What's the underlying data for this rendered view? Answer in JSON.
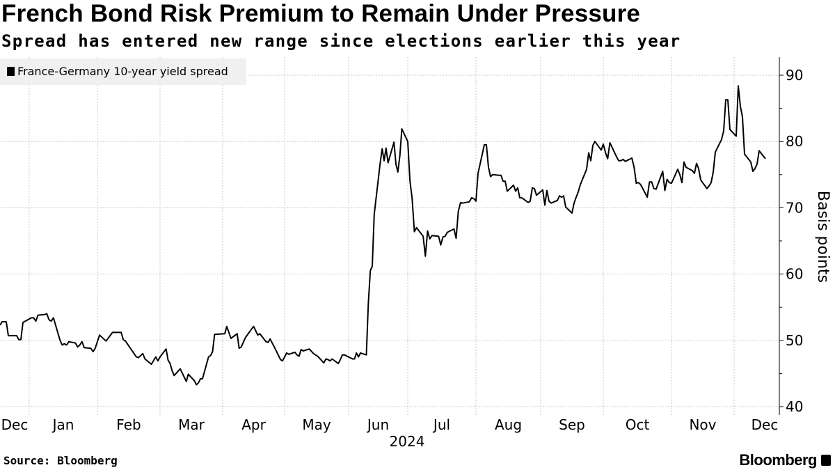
{
  "header": {
    "title": "French Bond Risk Premium to Remain Under Pressure",
    "subtitle": "Spread has entered new range since elections earlier this year"
  },
  "footer": {
    "source": "Source: Bloomberg",
    "logo": "Bloomberg"
  },
  "chart_data": {
    "type": "line",
    "title": "French Bond Risk Premium to Remain Under Pressure",
    "subtitle": "Spread has entered new range since elections earlier this year",
    "ylabel": "Basis points",
    "xlabel": "",
    "year_label": "2024",
    "ylim": [
      39,
      93
    ],
    "y_ticks": [
      40,
      50,
      60,
      70,
      80,
      90
    ],
    "y_axis_side": "right",
    "x_tick_labels": [
      "Dec",
      "Jan",
      "Feb",
      "Mar",
      "Apr",
      "May",
      "Jun",
      "Jul",
      "Aug",
      "Sep",
      "Oct",
      "Nov",
      "Dec"
    ],
    "grid": true,
    "legend_placement": "top-left",
    "line_color": "#000000",
    "legend_bg": "#f0f0f0",
    "series": [
      {
        "name": "France-Germany 10-year yield spread",
        "points": [
          [
            "2023-12-18",
            52.3
          ],
          [
            "2023-12-19",
            52.8
          ],
          [
            "2023-12-21",
            52.8
          ],
          [
            "2023-12-22",
            50.7
          ],
          [
            "2023-12-26",
            50.7
          ],
          [
            "2023-12-27",
            50.1
          ],
          [
            "2023-12-28",
            50.1
          ],
          [
            "2023-12-29",
            52.7
          ],
          [
            "2024-01-02",
            53.4
          ],
          [
            "2024-01-03",
            53.4
          ],
          [
            "2024-01-04",
            52.9
          ],
          [
            "2024-01-05",
            53.8
          ],
          [
            "2024-01-08",
            53.9
          ],
          [
            "2024-01-09",
            54.0
          ],
          [
            "2024-01-10",
            53.1
          ],
          [
            "2024-01-11",
            52.9
          ],
          [
            "2024-01-12",
            53.4
          ],
          [
            "2024-01-15",
            50.0
          ],
          [
            "2024-01-16",
            49.3
          ],
          [
            "2024-01-17",
            49.5
          ],
          [
            "2024-01-18",
            49.3
          ],
          [
            "2024-01-19",
            49.8
          ],
          [
            "2024-01-22",
            49.6
          ],
          [
            "2024-01-23",
            49.0
          ],
          [
            "2024-01-24",
            49.3
          ],
          [
            "2024-01-25",
            49.8
          ],
          [
            "2024-01-26",
            48.9
          ],
          [
            "2024-01-29",
            48.8
          ],
          [
            "2024-01-30",
            48.3
          ],
          [
            "2024-01-31",
            48.8
          ],
          [
            "2024-02-02",
            50.8
          ],
          [
            "2024-02-05",
            49.9
          ],
          [
            "2024-02-08",
            51.2
          ],
          [
            "2024-02-12",
            51.2
          ],
          [
            "2024-02-13",
            50.1
          ],
          [
            "2024-02-14",
            49.9
          ],
          [
            "2024-02-19",
            47.5
          ],
          [
            "2024-02-20",
            47.4
          ],
          [
            "2024-02-22",
            48.0
          ],
          [
            "2024-02-23",
            47.2
          ],
          [
            "2024-02-26",
            46.4
          ],
          [
            "2024-02-28",
            47.5
          ],
          [
            "2024-02-29",
            46.9
          ],
          [
            "2024-03-01",
            47.5
          ],
          [
            "2024-03-04",
            48.7
          ],
          [
            "2024-03-05",
            47.0
          ],
          [
            "2024-03-06",
            46.5
          ],
          [
            "2024-03-07",
            45.4
          ],
          [
            "2024-03-08",
            44.7
          ],
          [
            "2024-03-11",
            45.7
          ],
          [
            "2024-03-14",
            43.8
          ],
          [
            "2024-03-15",
            44.9
          ],
          [
            "2024-03-18",
            43.9
          ],
          [
            "2024-03-19",
            43.3
          ],
          [
            "2024-03-20",
            43.6
          ],
          [
            "2024-03-21",
            44.2
          ],
          [
            "2024-03-22",
            44.2
          ],
          [
            "2024-03-25",
            47.5
          ],
          [
            "2024-03-26",
            47.7
          ],
          [
            "2024-03-27",
            48.3
          ],
          [
            "2024-03-28",
            50.9
          ],
          [
            "2024-04-02",
            51.0
          ],
          [
            "2024-04-03",
            52.1
          ],
          [
            "2024-04-05",
            50.3
          ],
          [
            "2024-04-08",
            51.0
          ],
          [
            "2024-04-09",
            48.8
          ],
          [
            "2024-04-10",
            49.0
          ],
          [
            "2024-04-12",
            50.4
          ],
          [
            "2024-04-15",
            51.7
          ],
          [
            "2024-04-16",
            52.1
          ],
          [
            "2024-04-18",
            50.8
          ],
          [
            "2024-04-19",
            51.0
          ],
          [
            "2024-04-22",
            49.8
          ],
          [
            "2024-04-23",
            49.7
          ],
          [
            "2024-04-24",
            50.2
          ],
          [
            "2024-04-25",
            49.6
          ],
          [
            "2024-04-26",
            49.0
          ],
          [
            "2024-04-29",
            47.1
          ],
          [
            "2024-04-30",
            46.9
          ],
          [
            "2024-05-02",
            48.1
          ],
          [
            "2024-05-03",
            47.9
          ],
          [
            "2024-05-06",
            48.2
          ],
          [
            "2024-05-07",
            47.8
          ],
          [
            "2024-05-08",
            47.6
          ],
          [
            "2024-05-09",
            48.6
          ],
          [
            "2024-05-10",
            48.4
          ],
          [
            "2024-05-13",
            48.7
          ],
          [
            "2024-05-15",
            48.0
          ],
          [
            "2024-05-17",
            47.6
          ],
          [
            "2024-05-20",
            46.6
          ],
          [
            "2024-05-21",
            47.2
          ],
          [
            "2024-05-22",
            47.1
          ],
          [
            "2024-05-23",
            46.9
          ],
          [
            "2024-05-24",
            47.2
          ],
          [
            "2024-05-27",
            46.5
          ],
          [
            "2024-05-28",
            47.1
          ],
          [
            "2024-05-29",
            47.8
          ],
          [
            "2024-05-30",
            47.8
          ],
          [
            "2024-06-03",
            47.2
          ],
          [
            "2024-06-04",
            47.2
          ],
          [
            "2024-06-05",
            48.1
          ],
          [
            "2024-06-06",
            47.5
          ],
          [
            "2024-06-07",
            48.1
          ],
          [
            "2024-06-10",
            47.8
          ],
          [
            "2024-06-11",
            55.5
          ],
          [
            "2024-06-12",
            60.5
          ],
          [
            "2024-06-13",
            61.2
          ],
          [
            "2024-06-14",
            69.0
          ],
          [
            "2024-06-17",
            76.7
          ],
          [
            "2024-06-18",
            78.9
          ],
          [
            "2024-06-19",
            77.1
          ],
          [
            "2024-06-20",
            79.0
          ],
          [
            "2024-06-21",
            76.8
          ],
          [
            "2024-06-24",
            79.9
          ],
          [
            "2024-06-25",
            76.6
          ],
          [
            "2024-06-26",
            75.4
          ],
          [
            "2024-06-27",
            77.9
          ],
          [
            "2024-06-28",
            81.9
          ],
          [
            "2024-07-01",
            80.0
          ],
          [
            "2024-07-02",
            74.0
          ],
          [
            "2024-07-03",
            71.4
          ],
          [
            "2024-07-04",
            66.4
          ],
          [
            "2024-07-05",
            67.0
          ],
          [
            "2024-07-08",
            65.7
          ],
          [
            "2024-07-09",
            62.7
          ],
          [
            "2024-07-10",
            66.5
          ],
          [
            "2024-07-11",
            65.3
          ],
          [
            "2024-07-12",
            65.8
          ],
          [
            "2024-07-15",
            65.7
          ],
          [
            "2024-07-16",
            64.4
          ],
          [
            "2024-07-17",
            65.6
          ],
          [
            "2024-07-18",
            65.7
          ],
          [
            "2024-07-19",
            66.3
          ],
          [
            "2024-07-22",
            66.8
          ],
          [
            "2024-07-23",
            65.4
          ],
          [
            "2024-07-24",
            69.5
          ],
          [
            "2024-07-25",
            70.8
          ],
          [
            "2024-07-26",
            70.7
          ],
          [
            "2024-07-29",
            70.9
          ],
          [
            "2024-07-30",
            71.5
          ],
          [
            "2024-07-31",
            71.4
          ],
          [
            "2024-08-01",
            71.0
          ],
          [
            "2024-08-02",
            75.2
          ],
          [
            "2024-08-05",
            79.5
          ],
          [
            "2024-08-06",
            79.5
          ],
          [
            "2024-08-07",
            76.1
          ],
          [
            "2024-08-08",
            74.7
          ],
          [
            "2024-08-09",
            75.0
          ],
          [
            "2024-08-12",
            74.9
          ],
          [
            "2024-08-13",
            74.9
          ],
          [
            "2024-08-14",
            74.0
          ],
          [
            "2024-08-15",
            74.0
          ],
          [
            "2024-08-16",
            72.5
          ],
          [
            "2024-08-19",
            73.4
          ],
          [
            "2024-08-20",
            72.5
          ],
          [
            "2024-08-21",
            73.0
          ],
          [
            "2024-08-22",
            71.5
          ],
          [
            "2024-08-23",
            71.5
          ],
          [
            "2024-08-26",
            70.8
          ],
          [
            "2024-08-27",
            71.0
          ],
          [
            "2024-08-28",
            73.0
          ],
          [
            "2024-08-29",
            72.9
          ],
          [
            "2024-08-30",
            71.9
          ],
          [
            "2024-09-02",
            72.7
          ],
          [
            "2024-09-03",
            70.4
          ],
          [
            "2024-09-04",
            72.6
          ],
          [
            "2024-09-05",
            71.0
          ],
          [
            "2024-09-06",
            70.7
          ],
          [
            "2024-09-09",
            71.1
          ],
          [
            "2024-09-10",
            71.8
          ],
          [
            "2024-09-11",
            71.6
          ],
          [
            "2024-09-12",
            71.8
          ],
          [
            "2024-09-13",
            70.1
          ],
          [
            "2024-09-16",
            69.2
          ],
          [
            "2024-09-17",
            70.7
          ],
          [
            "2024-09-18",
            71.6
          ],
          [
            "2024-09-19",
            72.4
          ],
          [
            "2024-09-20",
            73.5
          ],
          [
            "2024-09-23",
            75.8
          ],
          [
            "2024-09-24",
            78.3
          ],
          [
            "2024-09-25",
            77.1
          ],
          [
            "2024-09-26",
            79.4
          ],
          [
            "2024-09-27",
            80.0
          ],
          [
            "2024-09-30",
            78.7
          ],
          [
            "2024-10-01",
            79.6
          ],
          [
            "2024-10-02",
            78.3
          ],
          [
            "2024-10-03",
            77.4
          ],
          [
            "2024-10-04",
            79.8
          ],
          [
            "2024-10-07",
            77.7
          ],
          [
            "2024-10-08",
            77.1
          ],
          [
            "2024-10-09",
            77.1
          ],
          [
            "2024-10-10",
            77.3
          ],
          [
            "2024-10-11",
            77.0
          ],
          [
            "2024-10-14",
            77.5
          ],
          [
            "2024-10-15",
            76.1
          ],
          [
            "2024-10-16",
            73.7
          ],
          [
            "2024-10-17",
            73.8
          ],
          [
            "2024-10-18",
            73.5
          ],
          [
            "2024-10-21",
            71.6
          ],
          [
            "2024-10-22",
            73.9
          ],
          [
            "2024-10-23",
            73.9
          ],
          [
            "2024-10-24",
            72.9
          ],
          [
            "2024-10-25",
            72.8
          ],
          [
            "2024-10-28",
            75.5
          ],
          [
            "2024-10-29",
            72.6
          ],
          [
            "2024-10-30",
            74.3
          ],
          [
            "2024-10-31",
            73.8
          ],
          [
            "2024-11-01",
            73.7
          ],
          [
            "2024-11-04",
            75.8
          ],
          [
            "2024-11-05",
            75.0
          ],
          [
            "2024-11-06",
            73.8
          ],
          [
            "2024-11-07",
            76.9
          ],
          [
            "2024-11-08",
            76.1
          ],
          [
            "2024-11-11",
            75.6
          ],
          [
            "2024-11-12",
            75.2
          ],
          [
            "2024-11-13",
            76.7
          ],
          [
            "2024-11-14",
            75.9
          ],
          [
            "2024-11-15",
            74.2
          ],
          [
            "2024-11-18",
            72.9
          ],
          [
            "2024-11-19",
            73.3
          ],
          [
            "2024-11-20",
            73.8
          ],
          [
            "2024-11-21",
            75.4
          ],
          [
            "2024-11-22",
            78.4
          ],
          [
            "2024-11-25",
            80.3
          ],
          [
            "2024-11-26",
            81.6
          ],
          [
            "2024-11-27",
            86.3
          ],
          [
            "2024-11-28",
            86.3
          ],
          [
            "2024-11-29",
            81.8
          ],
          [
            "2024-12-02",
            80.8
          ],
          [
            "2024-12-03",
            88.4
          ],
          [
            "2024-12-04",
            85.3
          ],
          [
            "2024-12-05",
            83.7
          ],
          [
            "2024-12-06",
            78.1
          ],
          [
            "2024-12-09",
            76.9
          ],
          [
            "2024-12-10",
            75.5
          ],
          [
            "2024-12-11",
            75.9
          ],
          [
            "2024-12-12",
            76.6
          ],
          [
            "2024-12-13",
            78.6
          ],
          [
            "2024-12-16",
            77.4
          ]
        ]
      }
    ]
  }
}
